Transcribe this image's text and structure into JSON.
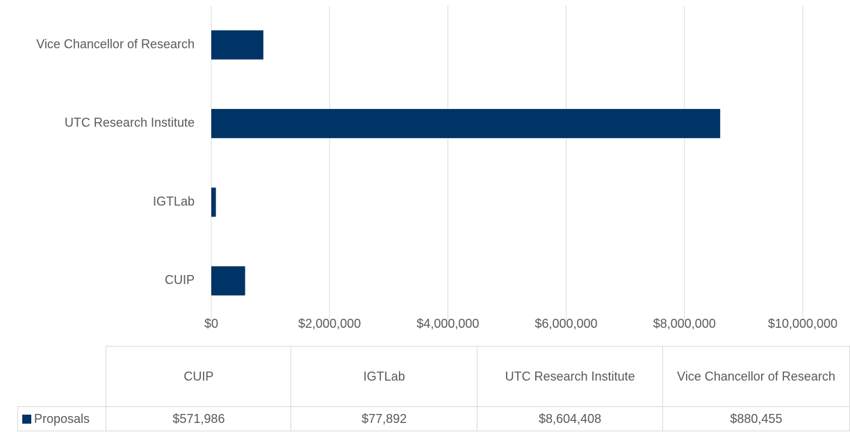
{
  "chart_data": {
    "type": "bar",
    "orientation": "horizontal",
    "categories": [
      "CUIP",
      "IGTLab",
      "UTC Research Institute",
      "Vice Chancellor of Research"
    ],
    "series": [
      {
        "name": "Proposals",
        "color": "#003366",
        "values": [
          571986,
          77892,
          8604408,
          880455
        ],
        "value_labels": [
          "$571,986",
          "$77,892",
          "$8,604,408",
          "$880,455"
        ]
      }
    ],
    "xlim": [
      0,
      10000000
    ],
    "xticks": [
      {
        "value": 0,
        "label": "$0"
      },
      {
        "value": 2000000,
        "label": "$2,000,000"
      },
      {
        "value": 4000000,
        "label": "$4,000,000"
      },
      {
        "value": 6000000,
        "label": "$6,000,000"
      },
      {
        "value": 8000000,
        "label": "$8,000,000"
      },
      {
        "value": 10000000,
        "label": "$10,000,000"
      }
    ],
    "grid": true,
    "data_table": true
  }
}
